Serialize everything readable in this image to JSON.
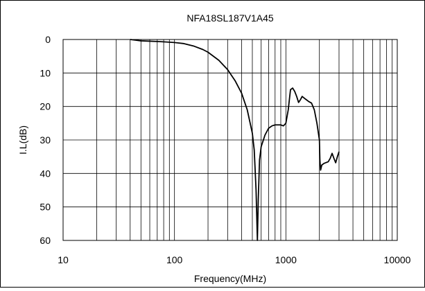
{
  "chart_data": {
    "type": "line",
    "title": "NFA18SL187V1A45",
    "xlabel": "Frequency(MHz)",
    "ylabel": "I.L(dB)",
    "x_scale": "log",
    "xlim": [
      10,
      10000
    ],
    "ylim": [
      0,
      60
    ],
    "y_inverted": true,
    "x_ticks": [
      "10",
      "100",
      "1000",
      "10000"
    ],
    "y_ticks": [
      "0",
      "10",
      "20",
      "30",
      "40",
      "50",
      "60"
    ],
    "grid": true,
    "legend": "none",
    "series": [
      {
        "name": "",
        "color": "#000000",
        "points": [
          [
            40,
            0.0
          ],
          [
            45,
            0.2
          ],
          [
            50,
            0.4
          ],
          [
            60,
            0.5
          ],
          [
            70,
            0.6
          ],
          [
            80,
            0.7
          ],
          [
            90,
            0.8
          ],
          [
            100,
            0.9
          ],
          [
            120,
            1.2
          ],
          [
            150,
            2.0
          ],
          [
            180,
            3.0
          ],
          [
            200,
            3.8
          ],
          [
            250,
            6.2
          ],
          [
            300,
            9.0
          ],
          [
            350,
            12.3
          ],
          [
            400,
            16.0
          ],
          [
            450,
            21.0
          ],
          [
            500,
            28.0
          ],
          [
            520,
            33.0
          ],
          [
            540,
            45.0
          ],
          [
            555,
            60.0
          ],
          [
            565,
            48.0
          ],
          [
            580,
            36.0
          ],
          [
            600,
            32.0
          ],
          [
            650,
            28.5
          ],
          [
            700,
            26.5
          ],
          [
            750,
            25.8
          ],
          [
            800,
            25.5
          ],
          [
            900,
            25.5
          ],
          [
            950,
            25.8
          ],
          [
            1000,
            25.0
          ],
          [
            1050,
            21.0
          ],
          [
            1100,
            15.0
          ],
          [
            1150,
            14.5
          ],
          [
            1200,
            15.5
          ],
          [
            1250,
            17.0
          ],
          [
            1300,
            18.8
          ],
          [
            1350,
            18.0
          ],
          [
            1400,
            17.0
          ],
          [
            1500,
            17.8
          ],
          [
            1600,
            18.5
          ],
          [
            1700,
            19.0
          ],
          [
            1800,
            21.0
          ],
          [
            1900,
            25.0
          ],
          [
            2000,
            30.0
          ],
          [
            2020,
            36.0
          ],
          [
            2050,
            39.0
          ],
          [
            2100,
            37.5
          ],
          [
            2200,
            37.0
          ],
          [
            2400,
            36.5
          ],
          [
            2500,
            35.5
          ],
          [
            2600,
            34.0
          ],
          [
            2700,
            35.5
          ],
          [
            2800,
            36.8
          ],
          [
            2900,
            35.0
          ],
          [
            3000,
            33.5
          ]
        ]
      }
    ]
  }
}
